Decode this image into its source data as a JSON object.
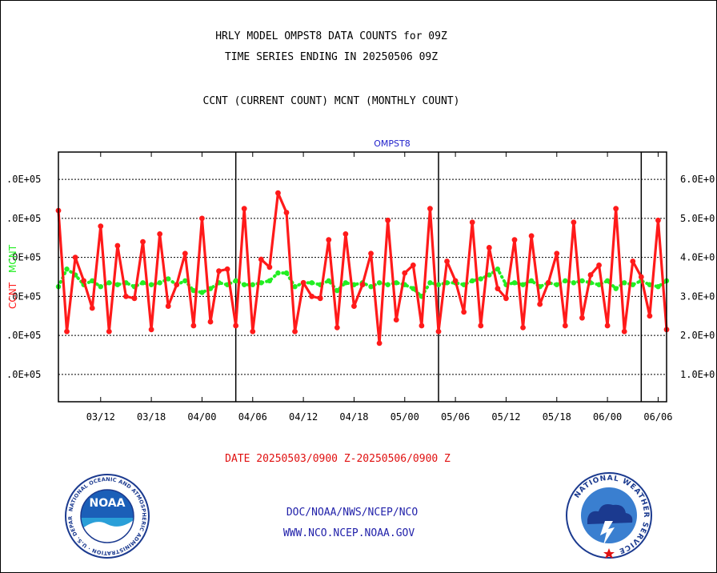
{
  "header": {
    "title_line1": "HRLY MODEL OMPST8 DATA COUNTS for 09Z",
    "title_line2": "TIME SERIES ENDING IN 20250506 09Z",
    "legend_line": "CCNT (CURRENT COUNT) MCNT (MONTHLY COUNT)"
  },
  "footer": {
    "date_range": "DATE 20250503/0900 Z-20250506/0900 Z",
    "org_path": "DOC/NOAA/NWS/NCEP/NCO",
    "website": "WWW.NCO.NCEP.NOAA.GOV"
  },
  "logos": {
    "noaa_text": "NOAA",
    "noaa_ring_text": "NATIONAL OCEANIC AND ATMOSPHERIC ADMINISTRATION · U.S. DEPARTMENT OF COMMERCE",
    "nws_ring_text": "NATIONAL WEATHER SERVICE"
  },
  "colors": {
    "ccnt": "#ff1a1a",
    "mcnt": "#22ee22",
    "subtitle": "#2222cc",
    "footer_red": "#e01010",
    "footer_blue": "#2222aa",
    "grid": "#000000"
  },
  "chart_data": {
    "type": "line",
    "title": "OMPST8",
    "ylabel_left": "CCNT",
    "ylabel_left_2": "MCNT",
    "left_tick_labels": [
      ".0E+05",
      ".0E+05",
      ".0E+05",
      ".0E+05",
      ".0E+05",
      ".0E+05"
    ],
    "right_tick_labels": [
      "6.0E+0",
      "5.0E+0",
      "4.0E+0",
      "3.0E+0",
      "2.0E+0",
      "1.0E+0"
    ],
    "ylim": [
      0.3,
      6.7
    ],
    "y_tick_values": [
      6,
      5,
      4,
      3,
      2,
      1
    ],
    "x_tick_labels": [
      "03/12",
      "03/18",
      "04/00",
      "04/06",
      "04/12",
      "04/18",
      "05/00",
      "05/06",
      "05/12",
      "05/18",
      "06/00",
      "06/06"
    ],
    "x_tick_positions": [
      5,
      11,
      17,
      23,
      29,
      35,
      41,
      47,
      53,
      59,
      65,
      71
    ],
    "x_range": [
      0,
      72
    ],
    "day_boundaries": [
      21,
      45,
      69
    ],
    "grid": true,
    "series": [
      {
        "name": "CCNT",
        "x": [
          0,
          1,
          2,
          3,
          4,
          5,
          6,
          7,
          8,
          9,
          10,
          11,
          12,
          13,
          14,
          15,
          16,
          17,
          18,
          19,
          20,
          21,
          22,
          23,
          24,
          25,
          26,
          27,
          28,
          29,
          30,
          31,
          32,
          33,
          34,
          35,
          36,
          37,
          38,
          39,
          40,
          41,
          42,
          43,
          44,
          45,
          46,
          47,
          48,
          49,
          50,
          51,
          52,
          53,
          54,
          55,
          56,
          57,
          58,
          59,
          60,
          61,
          62,
          63,
          64,
          65,
          66,
          67,
          68,
          69,
          70,
          71,
          72
        ],
        "values": [
          5.2,
          2.1,
          4.0,
          3.4,
          2.7,
          4.8,
          2.1,
          4.3,
          3.0,
          2.95,
          4.4,
          2.15,
          4.6,
          2.75,
          3.3,
          4.1,
          2.25,
          5.0,
          2.35,
          3.65,
          3.7,
          2.25,
          5.25,
          2.1,
          3.95,
          3.75,
          5.65,
          5.15,
          2.1,
          3.35,
          3.0,
          2.95,
          4.45,
          2.2,
          4.6,
          2.75,
          3.3,
          4.1,
          1.8,
          4.95,
          2.4,
          3.6,
          3.8,
          2.25,
          5.25,
          2.1,
          3.9,
          3.4,
          2.6,
          4.9,
          2.25,
          4.25,
          3.2,
          2.95,
          4.45,
          2.2,
          4.55,
          2.8,
          3.35,
          4.1,
          2.25,
          4.9,
          2.45,
          3.55,
          3.8,
          2.25,
          5.25,
          2.1,
          3.9,
          3.5,
          2.5,
          4.95,
          2.15
        ]
      },
      {
        "name": "MCNT",
        "x": [
          0,
          1,
          2,
          3,
          4,
          5,
          6,
          7,
          8,
          9,
          10,
          11,
          12,
          13,
          14,
          15,
          16,
          17,
          18,
          19,
          20,
          21,
          22,
          23,
          24,
          25,
          26,
          27,
          28,
          29,
          30,
          31,
          32,
          33,
          34,
          35,
          36,
          37,
          38,
          39,
          40,
          41,
          42,
          43,
          44,
          45,
          46,
          47,
          48,
          49,
          50,
          51,
          52,
          53,
          54,
          55,
          56,
          57,
          58,
          59,
          60,
          61,
          62,
          63,
          64,
          65,
          66,
          67,
          68,
          69,
          70,
          71,
          72
        ],
        "values": [
          3.25,
          3.7,
          3.55,
          3.3,
          3.4,
          3.25,
          3.35,
          3.3,
          3.35,
          3.25,
          3.35,
          3.3,
          3.35,
          3.45,
          3.3,
          3.4,
          3.15,
          3.1,
          3.2,
          3.35,
          3.3,
          3.4,
          3.3,
          3.3,
          3.35,
          3.4,
          3.6,
          3.6,
          3.25,
          3.35,
          3.35,
          3.3,
          3.4,
          3.15,
          3.35,
          3.3,
          3.35,
          3.25,
          3.35,
          3.3,
          3.35,
          3.3,
          3.2,
          3.0,
          3.35,
          3.3,
          3.35,
          3.35,
          3.3,
          3.4,
          3.45,
          3.55,
          3.7,
          3.3,
          3.35,
          3.3,
          3.4,
          3.25,
          3.35,
          3.3,
          3.4,
          3.35,
          3.4,
          3.35,
          3.3,
          3.4,
          3.2,
          3.35,
          3.3,
          3.4,
          3.3,
          3.25,
          3.4
        ]
      }
    ]
  }
}
